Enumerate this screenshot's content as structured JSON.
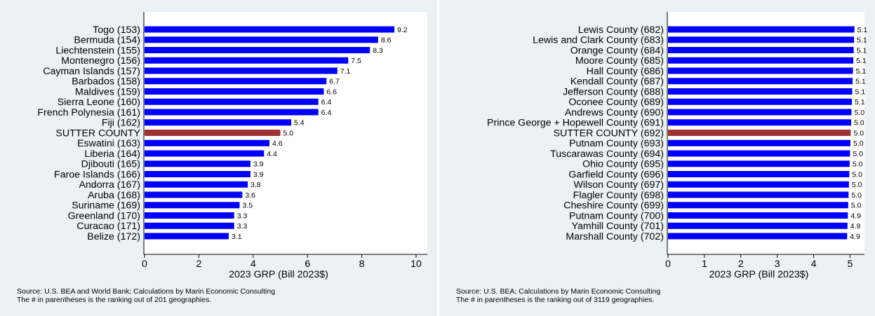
{
  "colors": {
    "bar": "#0000ff",
    "highlight": "#a03232",
    "panel_bg": "#eaf2f3",
    "plot_bg": "#ffffff"
  },
  "chart_data": [
    {
      "type": "bar",
      "orientation": "horizontal",
      "xlabel": "2023 GRP (Bill 2023$)",
      "xlim": [
        0,
        10
      ],
      "xticks": [
        0,
        2,
        4,
        6,
        8,
        10
      ],
      "categories": [
        "Togo (153)",
        "Bermuda (154)",
        "Liechtenstein (155)",
        "Montenegro (156)",
        "Cayman Islands (157)",
        "Barbados (158)",
        "Maldives (159)",
        "Sierra Leone (160)",
        "French Polynesia (161)",
        "Fiji (162)",
        "SUTTER COUNTY",
        "Eswatini (163)",
        "Liberia (164)",
        "Djibouti (165)",
        "Faroe Islands (166)",
        "Andorra (167)",
        "Aruba (168)",
        "Suriname (169)",
        "Greenland (170)",
        "Curacao (171)",
        "Belize (172)"
      ],
      "values": [
        9.2,
        8.6,
        8.3,
        7.5,
        7.1,
        6.7,
        6.6,
        6.4,
        6.4,
        5.4,
        5.0,
        4.6,
        4.4,
        3.9,
        3.9,
        3.8,
        3.6,
        3.5,
        3.3,
        3.3,
        3.1
      ],
      "value_labels": [
        "9.2",
        "8.6",
        "8.3",
        "7.5",
        "7.1",
        "6.7",
        "6.6",
        "6.4",
        "6.4",
        "5.4",
        "5.0",
        "4.6",
        "4.4",
        "3.9",
        "3.9",
        "3.8",
        "3.6",
        "3.5",
        "3.3",
        "3.3",
        "3.1"
      ],
      "highlight_category": "SUTTER COUNTY",
      "source_lines": [
        "Source: U.S. BEA and World Bank; Calculations by Marin Economic Consulting",
        "The # in parentheses is the ranking out of 201 geographies."
      ]
    },
    {
      "type": "bar",
      "orientation": "horizontal",
      "xlabel": "2023 GRP (Bill 2023$)",
      "xlim": [
        0,
        5.3
      ],
      "xticks": [
        0,
        1,
        2,
        3,
        4,
        5
      ],
      "categories": [
        "Lewis County (682)",
        "Lewis and Clark County (683)",
        "Orange County (684)",
        "Moore County (685)",
        "Hall County (686)",
        "Kendall County (687)",
        "Jefferson County (688)",
        "Oconee County (689)",
        "Andrews County (690)",
        "Prince George + Hopewell County (691)",
        "SUTTER COUNTY (692)",
        "Putnam County (693)",
        "Tuscarawas County (694)",
        "Ohio County (695)",
        "Garfield County (696)",
        "Wilson County (697)",
        "Flagler County (698)",
        "Cheshire County (699)",
        "Putnam County (700)",
        "Yamhill County (701)",
        "Marshall County (702)"
      ],
      "values": [
        5.12,
        5.11,
        5.1,
        5.09,
        5.08,
        5.07,
        5.06,
        5.05,
        5.04,
        5.03,
        5.02,
        5.01,
        5.0,
        4.99,
        4.98,
        4.97,
        4.96,
        4.95,
        4.94,
        4.93,
        4.92
      ],
      "value_labels": [
        "5.1",
        "5.1",
        "5.1",
        "5.1",
        "5.1",
        "5.1",
        "5.1",
        "5.1",
        "5.0",
        "5.0",
        "5.0",
        "5.0",
        "5.0",
        "5.0",
        "5.0",
        "5.0",
        "5.0",
        "5.0",
        "4.9",
        "4.9",
        "4.9"
      ],
      "highlight_category": "SUTTER COUNTY (692)",
      "source_lines": [
        "Source: U.S. BEA; Calculations by Marin Economic Consulting",
        "The # in parentheses is the ranking out of 3119 geographies."
      ]
    }
  ]
}
